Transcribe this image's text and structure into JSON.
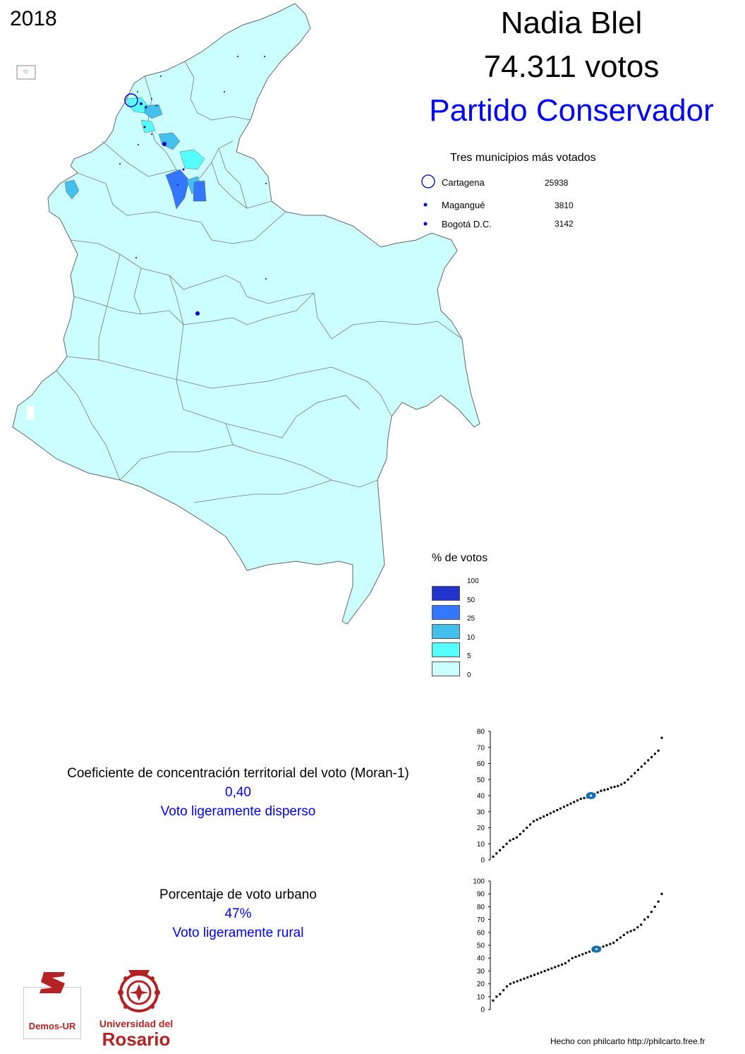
{
  "header": {
    "year": "2018",
    "candidate": "Nadia Blel",
    "votes": "74.311 votos",
    "party": "Partido Conservador"
  },
  "top_municipalities": {
    "title": "Tres municipios más votados",
    "rows": [
      {
        "name": "Cartagena",
        "votes": "25938"
      },
      {
        "name": "Magangué",
        "votes": "3810"
      },
      {
        "name": "Bogotá D.C.",
        "votes": "3142"
      }
    ]
  },
  "legend": {
    "title": "% de votos",
    "breaks": [
      "100",
      "50",
      "25",
      "10",
      "5",
      "0"
    ],
    "colors": [
      "#2233cc",
      "#3377ff",
      "#44c0ee",
      "#55ffff",
      "#ccffff"
    ]
  },
  "colors": {
    "map_fill": "#ccffff",
    "border": "#666666",
    "accent": "#0000ff",
    "brand_red": "#b42225"
  },
  "stats": {
    "moran_label": "Coeficiente de concentración territorial del voto (Moran-1)",
    "moran_value": "0,40",
    "moran_desc": "Voto ligeramente disperso",
    "urban_label": "Porcentaje de voto urbano",
    "urban_value": "47%",
    "urban_desc": "Voto ligeramente rural"
  },
  "chart_data": [
    {
      "type": "scatter",
      "yticks": [
        "0",
        "10",
        "20",
        "30",
        "40",
        "50",
        "60",
        "70",
        "80"
      ],
      "ylim": [
        0,
        80
      ],
      "marker_value": 40,
      "points": [
        2,
        4,
        6,
        8,
        10,
        12,
        13,
        14,
        16,
        18,
        20,
        22,
        24,
        25,
        26,
        27,
        28,
        29,
        30,
        31,
        32,
        33,
        34,
        35,
        36,
        37,
        38,
        38.5,
        39,
        40,
        41,
        42,
        43,
        43.5,
        44,
        45,
        45.5,
        46,
        47,
        48,
        50,
        52,
        54,
        56,
        58,
        60,
        62,
        64,
        66,
        68,
        76
      ]
    },
    {
      "type": "scatter",
      "yticks": [
        "0",
        "10",
        "20",
        "30",
        "40",
        "50",
        "60",
        "70",
        "80",
        "90",
        "100"
      ],
      "ylim": [
        0,
        100
      ],
      "marker_value": 47,
      "points": [
        7,
        10,
        12,
        15,
        18,
        20,
        21,
        22,
        23,
        24,
        25,
        26,
        27,
        28,
        29,
        30,
        31,
        32,
        33,
        34,
        35,
        36,
        38,
        40,
        41,
        42,
        43,
        44,
        45,
        46,
        47,
        48,
        49,
        50,
        51,
        52,
        54,
        56,
        58,
        60,
        61,
        62,
        64,
        66,
        70,
        72,
        76,
        80,
        84,
        90
      ]
    }
  ],
  "logos": {
    "demos": "Demos-UR",
    "university_line1": "Universidad del",
    "university_line2": "Rosario"
  },
  "credit": "Hecho con philcarto http://philcarto.free.fr"
}
